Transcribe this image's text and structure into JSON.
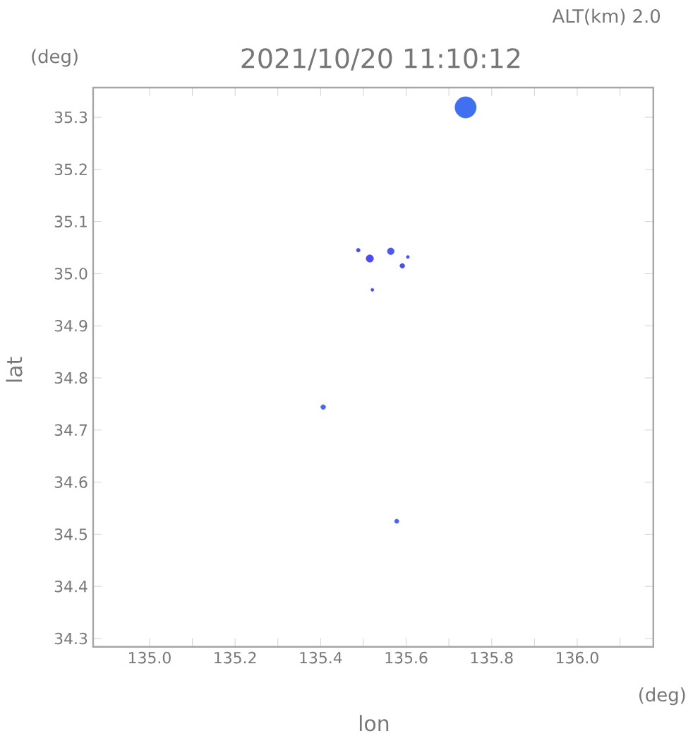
{
  "chart_data": {
    "type": "bubble",
    "title": "2021/10/20 11:10:12",
    "xlabel": "lon",
    "ylabel": "lat",
    "annotations": [
      "ALT(km) 2.0",
      "(deg)",
      "(deg)"
    ],
    "x": [
      135.739,
      135.515,
      135.564,
      135.591,
      135.488,
      135.521,
      135.604,
      135.406,
      135.578
    ],
    "values": [
      35.319,
      35.029,
      35.043,
      35.015,
      35.045,
      34.969,
      35.032,
      34.744,
      34.525
    ],
    "sizes": [
      1,
      0.12,
      0.1,
      0.05,
      0.03,
      0.02,
      0.02,
      0.05,
      0.04
    ],
    "colors": [
      "#4070f0",
      "#4a4ef0",
      "#4a5af0",
      "#4a4ef0",
      "#4a4ef0",
      "#4a4ef0",
      "#4a4ef0",
      "#4a66f0",
      "#4a66f0"
    ],
    "marker": "circle",
    "xlim": [
      134.868,
      136.178
    ],
    "ylim": [
      34.284,
      35.357
    ],
    "xticks": [
      {
        "value": 135.0,
        "label": "135.0"
      },
      {
        "value": 135.1,
        "label": null
      },
      135.2,
      {
        "value": 135.3,
        "label": null
      },
      135.4,
      {
        "value": 135.5,
        "label": null
      },
      135.6,
      {
        "value": 135.7,
        "label": null
      },
      135.8,
      {
        "value": 135.9,
        "label": null
      },
      {
        "value": 136.0,
        "label": "136.0"
      },
      {
        "value": 136.1,
        "label": null
      }
    ],
    "yticks": [
      34.3,
      34.4,
      34.5,
      34.6,
      34.7,
      34.8,
      34.9,
      {
        "value": 35.0,
        "label": "35.0"
      },
      35.1,
      35.2,
      35.3
    ],
    "grid": false
  }
}
